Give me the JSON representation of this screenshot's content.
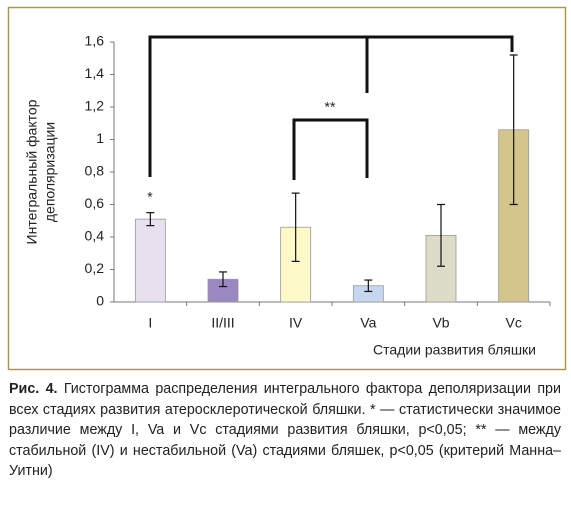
{
  "chart_data": {
    "type": "bar",
    "y_label": [
      "Интегральный фактор",
      "деполяризации"
    ],
    "x_label": "Стадии развития бляшки",
    "categories": [
      "I",
      "II/III",
      "IV",
      "Va",
      "Vb",
      "Vc"
    ],
    "values": [
      0.51,
      0.14,
      0.46,
      0.1,
      0.41,
      1.06
    ],
    "errors": [
      0.04,
      0.045,
      0.21,
      0.035,
      0.19,
      0.46
    ],
    "colors": [
      "#e8e0ef",
      "#9c88c0",
      "#fdf9c9",
      "#c6d8ef",
      "#dcdcc7",
      "#d3c58c"
    ],
    "ylim": [
      0,
      1.6
    ],
    "yticks": [
      0,
      {
        "value": 0.2,
        "label": "0,2"
      },
      {
        "value": 0.4,
        "label": "0,4"
      },
      {
        "value": 0.6,
        "label": "0,6"
      },
      {
        "value": 0.8,
        "label": "0,8"
      },
      1,
      {
        "value": 1.2,
        "label": "1,2"
      },
      {
        "value": 1.4,
        "label": "1,4"
      },
      {
        "value": 1.6,
        "label": "1,6"
      }
    ],
    "annotations": [
      "*",
      "**"
    ]
  },
  "caption": {
    "label": "Рис. 4.",
    "text": "Гистограмма распределения интегрального фактора деполяризации при всех стадиях развития атеросклеротической бляшки. * — статистически значимое различие между I, Va и Vc стадиями развития бляшки, p<0,05; ** — между стабильной (IV) и нестабильной (Va) стадиями бляшек, p<0,05 (критерий Манна–Уитни)"
  }
}
